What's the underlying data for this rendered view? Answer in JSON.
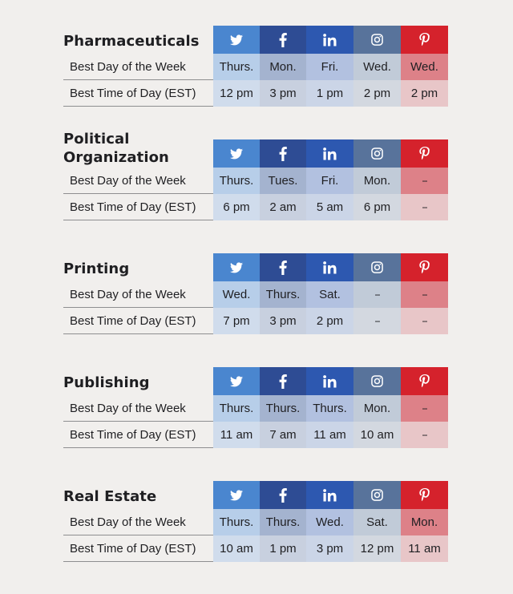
{
  "networks": [
    {
      "name": "Twitter",
      "icon": "twitter-icon",
      "color": "#4a86cf"
    },
    {
      "name": "Facebook",
      "icon": "facebook-icon",
      "color": "#2e4c94"
    },
    {
      "name": "LinkedIn",
      "icon": "linkedin-icon",
      "color": "#2d58b0"
    },
    {
      "name": "Instagram",
      "icon": "instagram-icon",
      "color": "#58739b"
    },
    {
      "name": "Pinterest",
      "icon": "pinterest-icon",
      "color": "#d5222c"
    }
  ],
  "row_labels": {
    "day": "Best Day of the Week",
    "time": "Best Time of Day (EST)"
  },
  "sections": [
    {
      "title": "Pharmaceuticals",
      "days": [
        "Thurs.",
        "Mon.",
        "Fri.",
        "Wed.",
        "Wed."
      ],
      "times": [
        "12 pm",
        "3 pm",
        "1 pm",
        "2 pm",
        "2 pm"
      ]
    },
    {
      "title": "Political Organization",
      "days": [
        "Thurs.",
        "Tues.",
        "Fri.",
        "Mon.",
        "--"
      ],
      "times": [
        "6 pm",
        "2 am",
        "5 am",
        "6 pm",
        "--"
      ]
    },
    {
      "title": "Printing",
      "days": [
        "Wed.",
        "Thurs.",
        "Sat.",
        "--",
        "--"
      ],
      "times": [
        "7 pm",
        "3 pm",
        "2 pm",
        "--",
        "--"
      ]
    },
    {
      "title": "Publishing",
      "days": [
        "Thurs.",
        "Thurs.",
        "Thurs.",
        "Mon.",
        "--"
      ],
      "times": [
        "11 am",
        "7 am",
        "11 am",
        "10 am",
        "--"
      ]
    },
    {
      "title": "Real Estate",
      "days": [
        "Thurs.",
        "Thurs.",
        "Wed.",
        "Sat.",
        "Mon."
      ],
      "times": [
        "10 am",
        "1 pm",
        "3 pm",
        "12 pm",
        "11 am"
      ]
    }
  ]
}
